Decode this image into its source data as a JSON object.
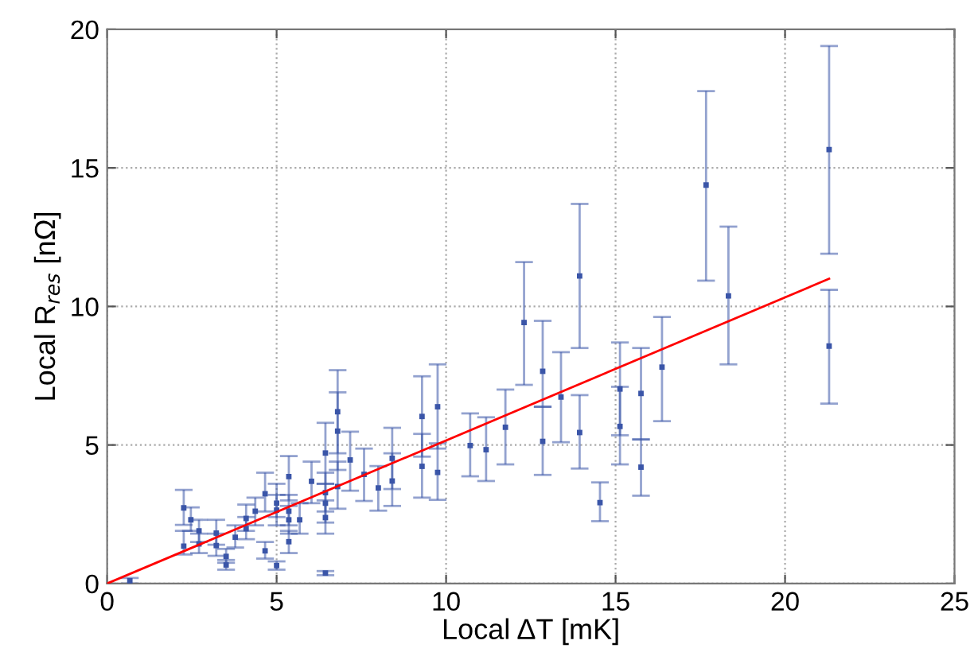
{
  "chart_data": {
    "type": "scatter",
    "xlabel": "Local ΔT [mK]",
    "ylabel": "Local R$_{res}$ [nΩ]",
    "xlim": [
      0,
      25
    ],
    "ylim": [
      0,
      20
    ],
    "xticks": [
      0,
      5,
      10,
      15,
      20,
      25
    ],
    "yticks": [
      0,
      5,
      10,
      15,
      20
    ],
    "grid": true,
    "series": [
      {
        "color": "#3a55a8",
        "marker": "square",
        "x": [
          0.67,
          2.26,
          2.26,
          2.47,
          2.71,
          2.71,
          3.22,
          3.22,
          3.51,
          3.51,
          3.78,
          4.1,
          4.1,
          4.37,
          4.66,
          4.66,
          5.0,
          5.0,
          5.0,
          5.36,
          5.36,
          5.36,
          5.36,
          5.68,
          6.03,
          6.44,
          6.44,
          6.44,
          6.44,
          6.44,
          6.8,
          6.8,
          6.8,
          7.17,
          7.58,
          8.0,
          8.41,
          8.41,
          9.29,
          9.29,
          9.75,
          9.75,
          10.71,
          11.18,
          11.75,
          12.3,
          12.85,
          12.85,
          13.39,
          13.94,
          13.94,
          14.54,
          15.13,
          15.13,
          15.75,
          15.75,
          16.37,
          17.67,
          18.33,
          21.3,
          21.3
        ],
        "values": [
          0.1,
          2.73,
          1.35,
          2.3,
          1.9,
          1.43,
          1.82,
          1.37,
          0.98,
          0.67,
          1.67,
          2.35,
          1.98,
          2.61,
          3.24,
          1.18,
          2.9,
          2.65,
          0.65,
          3.86,
          2.61,
          2.3,
          1.51,
          2.3,
          3.69,
          4.71,
          3.28,
          2.9,
          2.38,
          0.38,
          6.2,
          5.5,
          3.5,
          4.46,
          3.94,
          3.45,
          4.52,
          3.7,
          6.03,
          4.23,
          6.38,
          4.01,
          4.98,
          4.83,
          5.64,
          9.42,
          7.66,
          5.13,
          6.73,
          11.1,
          5.45,
          2.92,
          7.02,
          5.67,
          6.86,
          4.2,
          7.81,
          14.38,
          10.38,
          15.66,
          8.57
        ],
        "errors": [
          [
            0.0,
            0.2
          ],
          [
            2.12,
            3.38
          ],
          [
            1.05,
            1.9
          ],
          [
            1.9,
            2.75
          ],
          [
            1.5,
            2.3
          ],
          [
            1.1,
            1.8
          ],
          [
            1.4,
            2.3
          ],
          [
            1.0,
            1.8
          ],
          [
            0.75,
            1.25
          ],
          [
            0.5,
            0.85
          ],
          [
            1.3,
            2.1
          ],
          [
            1.9,
            2.85
          ],
          [
            1.6,
            2.4
          ],
          [
            2.1,
            3.1
          ],
          [
            2.6,
            4.0
          ],
          [
            0.9,
            1.5
          ],
          [
            2.4,
            3.6
          ],
          [
            2.1,
            3.2
          ],
          [
            0.5,
            0.8
          ],
          [
            3.0,
            4.6
          ],
          [
            2.1,
            3.2
          ],
          [
            1.8,
            2.8
          ],
          [
            1.1,
            1.9
          ],
          [
            1.8,
            2.9
          ],
          [
            2.9,
            4.4
          ],
          [
            3.6,
            5.8
          ],
          [
            2.6,
            4.0
          ],
          [
            2.2,
            3.6
          ],
          [
            1.8,
            3.0
          ],
          [
            0.3,
            0.45
          ],
          [
            4.7,
            7.7
          ],
          [
            4.1,
            6.9
          ],
          [
            2.7,
            4.4
          ],
          [
            3.35,
            5.48
          ],
          [
            2.98,
            4.87
          ],
          [
            2.63,
            4.24
          ],
          [
            3.41,
            5.62
          ],
          [
            2.8,
            4.7
          ],
          [
            4.58,
            7.48
          ],
          [
            3.1,
            5.4
          ],
          [
            4.87,
            7.91
          ],
          [
            3.02,
            5.06
          ],
          [
            3.87,
            6.14
          ],
          [
            3.7,
            6.0
          ],
          [
            4.3,
            7.0
          ],
          [
            7.17,
            11.6
          ],
          [
            6.38,
            9.48
          ],
          [
            3.92,
            6.38
          ],
          [
            5.1,
            8.35
          ],
          [
            8.5,
            13.7
          ],
          [
            4.15,
            6.8
          ],
          [
            2.25,
            3.65
          ],
          [
            5.35,
            8.7
          ],
          [
            4.3,
            7.1
          ],
          [
            5.2,
            8.5
          ],
          [
            3.17,
            5.2
          ],
          [
            5.86,
            9.62
          ],
          [
            10.93,
            17.77
          ],
          [
            7.91,
            12.88
          ],
          [
            11.9,
            19.4
          ],
          [
            6.49,
            10.6
          ]
        ]
      },
      {
        "type": "line",
        "color": "#ff0000",
        "x": [
          0,
          21.3
        ],
        "values": [
          0,
          11.0
        ]
      }
    ]
  }
}
